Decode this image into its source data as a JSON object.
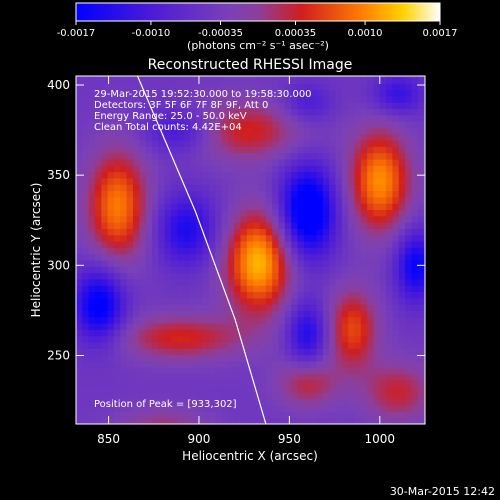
{
  "colorbar": {
    "tick_labels": [
      "-0.0017",
      "-0.0010",
      "-0.00035",
      "0.00035",
      "0.0010",
      "0.0017"
    ],
    "unit_label": "(photons cm⁻² s⁻¹ asec⁻²)"
  },
  "chart_data": {
    "type": "heatmap",
    "title": "Reconstructed RHESSI Image",
    "xlabel": "Heliocentric X (arcsec)",
    "ylabel": "Heliocentric Y (arcsec)",
    "xlim": [
      832,
      1025
    ],
    "ylim": [
      212,
      405
    ],
    "xticks": [
      850,
      900,
      950,
      1000
    ],
    "yticks": [
      250,
      300,
      350,
      400
    ],
    "zlim": [
      -0.0017,
      0.0017
    ],
    "colormap": "blue-purple-red-orange-yellow-white",
    "annotations": [
      "29-Mar-2015 19:52:30.000 to 19:58:30.000",
      "Detectors: 3F 5F 6F 7F 8F 9F, Att 0",
      "Energy Range: 25.0 - 50.0 keV",
      "Clean     Total counts: 4.42E+04"
    ],
    "peak_label": "Position of Peak = [933,302]",
    "peak": [
      933,
      302
    ],
    "limb_points": [
      [
        866,
        405
      ],
      [
        898,
        330
      ],
      [
        920,
        270
      ],
      [
        937,
        212
      ]
    ],
    "sources": [
      {
        "x": 933,
        "y": 302,
        "amp": 0.0017,
        "sx": 13,
        "sy": 20
      },
      {
        "x": 855,
        "y": 333,
        "amp": 0.0014,
        "sx": 12,
        "sy": 22
      },
      {
        "x": 1000,
        "y": 347,
        "amp": 0.0015,
        "sx": 12,
        "sy": 20
      },
      {
        "x": 925,
        "y": 375,
        "amp": 0.0009,
        "sx": 24,
        "sy": 12
      },
      {
        "x": 985,
        "y": 265,
        "amp": 0.0011,
        "sx": 10,
        "sy": 16
      },
      {
        "x": 890,
        "y": 260,
        "amp": 0.0009,
        "sx": 25,
        "sy": 9
      },
      {
        "x": 1010,
        "y": 230,
        "amp": 0.0008,
        "sx": 14,
        "sy": 12
      },
      {
        "x": 960,
        "y": 235,
        "amp": 0.0008,
        "sx": 12,
        "sy": 10
      },
      {
        "x": 880,
        "y": 210,
        "amp": 0.0006,
        "sx": 18,
        "sy": 8
      },
      {
        "x": 960,
        "y": 330,
        "amp": -0.0017,
        "sx": 11,
        "sy": 18
      },
      {
        "x": 845,
        "y": 278,
        "amp": -0.0014,
        "sx": 10,
        "sy": 15
      },
      {
        "x": 893,
        "y": 320,
        "amp": -0.001,
        "sx": 12,
        "sy": 14
      },
      {
        "x": 890,
        "y": 375,
        "amp": -0.0008,
        "sx": 14,
        "sy": 9
      },
      {
        "x": 960,
        "y": 262,
        "amp": -0.001,
        "sx": 8,
        "sy": 13
      },
      {
        "x": 1020,
        "y": 300,
        "amp": -0.0012,
        "sx": 8,
        "sy": 14
      },
      {
        "x": 1010,
        "y": 395,
        "amp": -0.0008,
        "sx": 10,
        "sy": 8
      },
      {
        "x": 960,
        "y": 390,
        "amp": -0.0006,
        "sx": 10,
        "sy": 8
      }
    ],
    "grid": false
  },
  "footer": {
    "timestamp": "30-Mar-2015 12:42"
  }
}
